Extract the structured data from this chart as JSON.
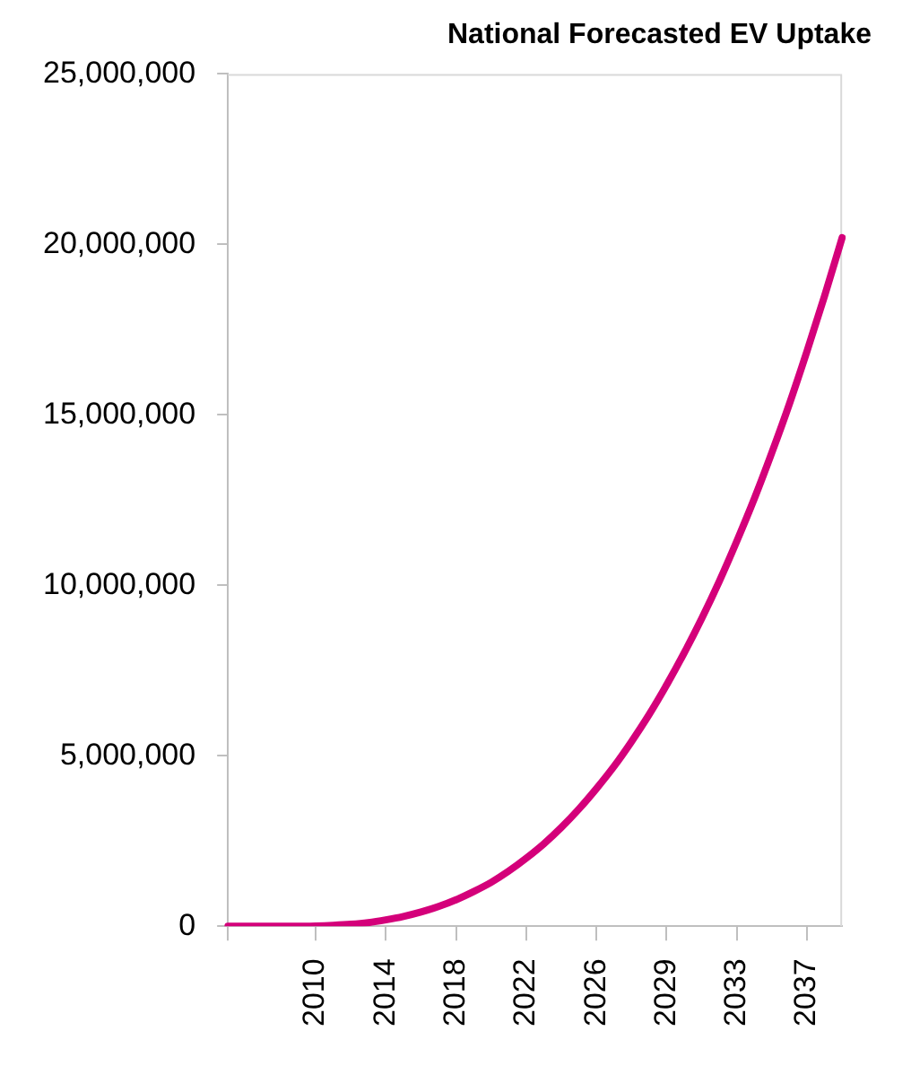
{
  "chart_data": {
    "type": "line",
    "title": "National Forecasted EV Uptake",
    "categories": [
      null,
      null,
      null,
      null,
      null,
      "2010",
      null,
      null,
      null,
      "2014",
      null,
      null,
      null,
      "2018",
      null,
      null,
      null,
      "2022",
      null,
      null,
      null,
      "2026",
      null,
      null,
      null,
      "2029",
      null,
      null,
      null,
      "2033",
      null,
      null,
      null,
      "2037",
      null,
      null
    ],
    "series": [
      {
        "color": "#d4007a",
        "values": [
          0,
          0,
          0,
          0,
          0,
          10000,
          30000,
          60000,
          110000,
          190000,
          290000,
          420000,
          580000,
          780000,
          1020000,
          1290000,
          1620000,
          2000000,
          2420000,
          2900000,
          3440000,
          4040000,
          4690000,
          5420000,
          6210000,
          7080000,
          8020000,
          9030000,
          10120000,
          11300000,
          12550000,
          13900000,
          15330000,
          16870000,
          18490000,
          20200000
        ]
      }
    ],
    "ylim": [
      0,
      25000000
    ],
    "yticks": [
      {
        "value": 0,
        "label": "0"
      },
      {
        "value": 5000000,
        "label": "5,000,000"
      },
      {
        "value": 10000000,
        "label": "10,000,000"
      },
      {
        "value": 15000000,
        "label": "15,000,000"
      },
      {
        "value": 20000000,
        "label": "20,000,000"
      },
      {
        "value": 25000000,
        "label": "25,000,000"
      }
    ],
    "grid": false,
    "legend": false,
    "marker": "none",
    "line_style": "solid"
  }
}
